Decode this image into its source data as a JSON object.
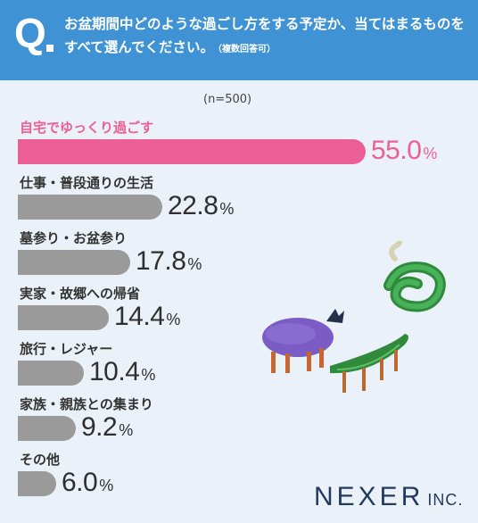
{
  "header": {
    "q_mark": "Q",
    "question": "お盆期間中どのような過ごし方をする予定か、当てはまるものをすべて選んでください。",
    "note": "（複数回答可）"
  },
  "sample_size": "(n=500)",
  "accent_color": "#ec5f96",
  "bar_color": "#9a9a9a",
  "header_color": "#3f93d4",
  "brand": {
    "name": "NEXER",
    "suffix": "INC."
  },
  "chart_data": {
    "type": "bar",
    "orientation": "horizontal",
    "unit": "%",
    "xlim": [
      0,
      55
    ],
    "categories": [
      "自宅でゆっくり過ごす",
      "仕事・普段通りの生活",
      "墓参り・お盆参り",
      "実家・故郷への帰省",
      "旅行・レジャー",
      "家族・親族との集まり",
      "その他"
    ],
    "values": [
      55.0,
      22.8,
      17.8,
      14.4,
      10.4,
      9.2,
      6.0
    ],
    "value_labels": [
      "55.0",
      "22.8",
      "17.8",
      "14.4",
      "10.4",
      "9.2",
      "6.0"
    ],
    "highlight_index": 0
  }
}
